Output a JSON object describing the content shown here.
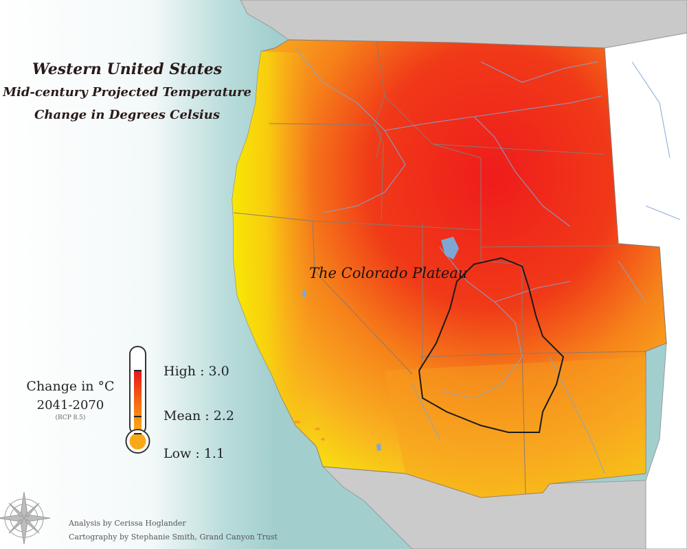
{
  "map": {
    "title": "Western United States",
    "subtitle_line1": "Mid-century Projected Temperature",
    "subtitle_line2": "Change in Degrees Celsius",
    "region_label": "The Colorado Plateau"
  },
  "legend": {
    "title": "Change in °C",
    "period": "2041-2070",
    "scenario": "(RCP 8.5)",
    "high": "High : 3.0",
    "mean": "Mean : 2.2",
    "low": "Low : 1.1",
    "high_value": 3.0,
    "mean_value": 2.2,
    "low_value": 1.1,
    "unit": "°C"
  },
  "credits": {
    "analysis": "Analysis by Cerissa Hoglander",
    "cartography": "Cartography by Stephanie Smith, Grand Canyon Trust"
  },
  "colors": {
    "high": "#e8141e",
    "mean": "#f56a10",
    "low": "#f8f200",
    "ocean": "#a9d4d3",
    "neighbor_land": "#c8c8c8",
    "rivers": "#7fa7d6",
    "state_borders": "#8a7a70",
    "plateau_outline": "#1a1a1a"
  },
  "icons": [
    "compass-rose-icon",
    "thermometer-icon"
  ]
}
